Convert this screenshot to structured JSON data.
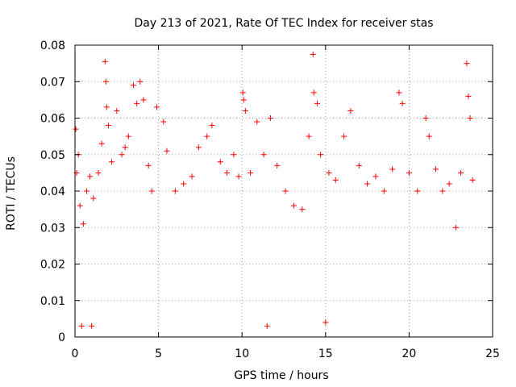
{
  "chart_data": {
    "type": "scatter",
    "title": "Day 213 of 2021, Rate Of TEC Index for receiver stas",
    "xlabel": "GPS time / hours",
    "ylabel": "ROTI / TECUs",
    "xlim": [
      0,
      25
    ],
    "ylim": [
      0,
      0.08
    ],
    "xticks": [
      "0",
      "5",
      "10",
      "15",
      "20",
      "25"
    ],
    "yticks": [
      "0",
      "0.01",
      "0.02",
      "0.03",
      "0.04",
      "0.05",
      "0.06",
      "0.07",
      "0.08"
    ],
    "grid": true,
    "marker": "+",
    "color": "#ff0000",
    "series": [
      {
        "points": [
          [
            0.05,
            0.057
          ],
          [
            0.1,
            0.045
          ],
          [
            0.2,
            0.05
          ],
          [
            0.3,
            0.036
          ],
          [
            0.5,
            0.031
          ],
          [
            0.7,
            0.04
          ],
          [
            0.9,
            0.044
          ],
          [
            1.1,
            0.038
          ],
          [
            1.4,
            0.045
          ],
          [
            1.6,
            0.053
          ],
          [
            1.8,
            0.0755
          ],
          [
            1.85,
            0.07
          ],
          [
            1.9,
            0.063
          ],
          [
            2.0,
            0.058
          ],
          [
            2.2,
            0.048
          ],
          [
            2.5,
            0.062
          ],
          [
            2.8,
            0.05
          ],
          [
            3.0,
            0.052
          ],
          [
            3.2,
            0.055
          ],
          [
            3.5,
            0.069
          ],
          [
            3.7,
            0.064
          ],
          [
            3.9,
            0.07
          ],
          [
            4.1,
            0.065
          ],
          [
            4.4,
            0.047
          ],
          [
            4.6,
            0.04
          ],
          [
            4.9,
            0.063
          ],
          [
            5.3,
            0.059
          ],
          [
            5.5,
            0.051
          ],
          [
            6.0,
            0.04
          ],
          [
            6.5,
            0.042
          ],
          [
            7.0,
            0.044
          ],
          [
            7.4,
            0.052
          ],
          [
            7.9,
            0.055
          ],
          [
            8.2,
            0.058
          ],
          [
            8.7,
            0.048
          ],
          [
            9.1,
            0.045
          ],
          [
            9.5,
            0.05
          ],
          [
            9.8,
            0.044
          ],
          [
            10.05,
            0.067
          ],
          [
            10.1,
            0.065
          ],
          [
            10.2,
            0.062
          ],
          [
            10.5,
            0.045
          ],
          [
            10.9,
            0.059
          ],
          [
            11.3,
            0.05
          ],
          [
            11.7,
            0.06
          ],
          [
            12.1,
            0.047
          ],
          [
            12.6,
            0.04
          ],
          [
            13.1,
            0.036
          ],
          [
            13.6,
            0.035
          ],
          [
            14.0,
            0.055
          ],
          [
            14.25,
            0.0775
          ],
          [
            14.3,
            0.067
          ],
          [
            14.5,
            0.064
          ],
          [
            14.7,
            0.05
          ],
          [
            15.2,
            0.045
          ],
          [
            15.6,
            0.043
          ],
          [
            16.1,
            0.055
          ],
          [
            16.5,
            0.062
          ],
          [
            17.0,
            0.047
          ],
          [
            17.5,
            0.042
          ],
          [
            18.0,
            0.044
          ],
          [
            18.5,
            0.04
          ],
          [
            19.0,
            0.046
          ],
          [
            19.4,
            0.067
          ],
          [
            19.6,
            0.064
          ],
          [
            20.0,
            0.045
          ],
          [
            20.5,
            0.04
          ],
          [
            21.0,
            0.06
          ],
          [
            21.2,
            0.055
          ],
          [
            21.6,
            0.046
          ],
          [
            22.0,
            0.04
          ],
          [
            22.4,
            0.042
          ],
          [
            22.8,
            0.03
          ],
          [
            23.1,
            0.045
          ],
          [
            23.45,
            0.075
          ],
          [
            23.55,
            0.066
          ],
          [
            23.65,
            0.06
          ],
          [
            23.8,
            0.043
          ],
          [
            0.4,
            0.003
          ],
          [
            1.0,
            0.003
          ],
          [
            11.5,
            0.003
          ],
          [
            15.0,
            0.004
          ]
        ]
      }
    ]
  }
}
